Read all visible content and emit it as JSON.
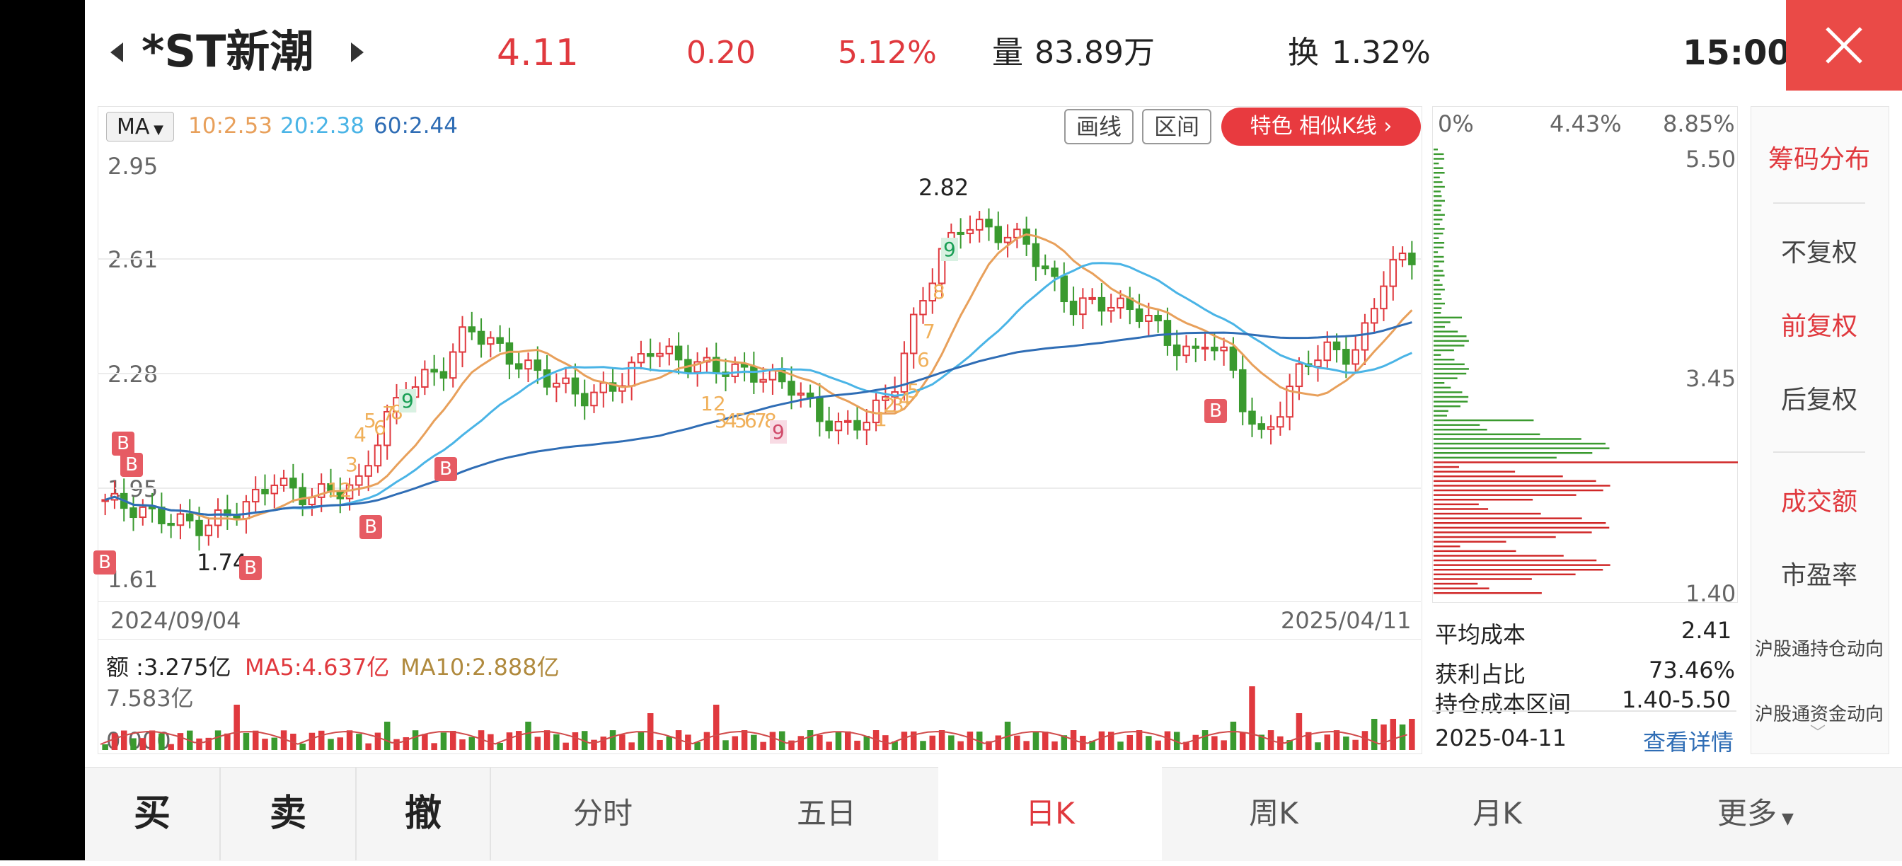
{
  "header": {
    "stock_name": "*ST新潮",
    "price": "4.11",
    "change": "0.20",
    "change_pct": "5.12%",
    "volume_label": "量",
    "volume": "83.89万",
    "turnover_label": "换",
    "turnover": "1.32%",
    "time": "15:00"
  },
  "chart": {
    "ma_selector": "MA",
    "ma10": "10:2.53",
    "ma20": "20:2.38",
    "ma60": "60:2.44",
    "draw_button": "画线",
    "range_button": "区间",
    "feature_button": "特色  相似K线 ›",
    "y_labels": [
      "2.95",
      "2.61",
      "2.28",
      "1.95",
      "1.61"
    ],
    "high_label": "2.82",
    "low_label": "1.74",
    "date_start": "2024/09/04",
    "date_end": "2025/04/11",
    "buy_marker": "B",
    "count_labels": [
      "12",
      "3",
      "4",
      "5",
      "6",
      "7",
      "8",
      "9",
      "12",
      "3",
      "4",
      "5",
      "6",
      "7",
      "8",
      "9",
      "1",
      "2",
      "3",
      "4",
      "5",
      "6",
      "7",
      "8",
      "9"
    ],
    "colors": {
      "up": "#e0393e",
      "down": "#3a9a2f",
      "ma10": "#e8a05b",
      "ma20": "#4ab4e6",
      "ma60": "#2f6db5"
    }
  },
  "volume_panel": {
    "amount": "额 :3.275亿",
    "ma5": "MA5:4.637亿",
    "ma10": "MA10:2.888亿",
    "max_label": "7.583亿",
    "zero_label": "0.000"
  },
  "chip": {
    "pct_0": "0%",
    "pct_mid": "4.43%",
    "pct_max": "8.85%",
    "price_top": "5.50",
    "price_mid": "3.45",
    "price_bottom": "1.40",
    "avg_cost_label": "平均成本",
    "avg_cost": "2.41",
    "profit_label": "获利占比",
    "profit": "73.46%",
    "range_label": "持仓成本区间",
    "range_value": "1.40-5.50",
    "date": "2025-04-11",
    "detail_link": "查看详情"
  },
  "side_menu": {
    "items": [
      "筹码分布",
      "不复权",
      "前复权",
      "后复权",
      "成交额",
      "市盈率",
      "沪股通持仓动向",
      "沪股通资金动向"
    ]
  },
  "bottom_bar": {
    "buy": "买",
    "sell": "卖",
    "cancel": "撤",
    "tabs": [
      "分时",
      "五日",
      "日K",
      "周K",
      "月K",
      "更多"
    ]
  }
}
